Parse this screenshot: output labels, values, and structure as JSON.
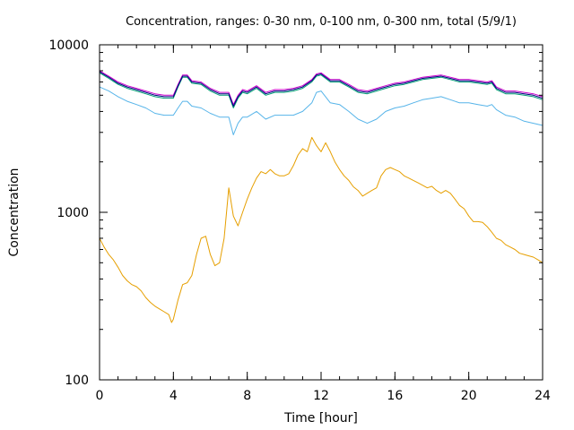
{
  "chart_data": {
    "type": "line",
    "title": "Concentration, ranges: 0-30 nm, 0-100 nm, 0-300 nm, total (5/9/1)",
    "xlabel": "Time [hour]",
    "ylabel": "Concentration",
    "xlim": [
      0,
      24
    ],
    "ylim": [
      100,
      10000
    ],
    "y_scale": "log",
    "grid": false,
    "x_ticks": [
      0,
      4,
      8,
      12,
      16,
      20,
      24
    ],
    "x_tick_labels": [
      "0",
      "4",
      "8",
      "12",
      "16",
      "20",
      "24"
    ],
    "x_minor_step": 1,
    "y_ticks": [
      100,
      1000,
      10000
    ],
    "y_tick_labels": [
      "100",
      "1000",
      "10000"
    ],
    "series": [
      {
        "color": "#e69f00",
        "x": [
          0,
          0.25,
          0.5,
          0.75,
          1,
          1.25,
          1.5,
          1.75,
          2,
          2.25,
          2.5,
          2.75,
          3,
          3.25,
          3.5,
          3.75,
          3.9,
          4,
          4.25,
          4.5,
          4.75,
          5,
          5.25,
          5.5,
          5.75,
          6,
          6.25,
          6.5,
          6.75,
          7,
          7.25,
          7.5,
          7.75,
          8,
          8.25,
          8.5,
          8.75,
          9,
          9.25,
          9.5,
          9.75,
          10,
          10.25,
          10.5,
          10.75,
          11,
          11.25,
          11.5,
          11.75,
          12,
          12.25,
          12.5,
          12.75,
          13,
          13.25,
          13.5,
          13.75,
          14,
          14.25,
          14.5,
          14.75,
          15,
          15.25,
          15.5,
          15.75,
          16,
          16.25,
          16.5,
          16.75,
          17,
          17.25,
          17.5,
          17.75,
          18,
          18.25,
          18.5,
          18.75,
          19,
          19.25,
          19.5,
          19.75,
          20,
          20.25,
          20.5,
          20.75,
          21,
          21.25,
          21.5,
          21.75,
          22,
          22.25,
          22.5,
          22.75,
          23,
          23.25,
          23.5,
          23.75,
          24
        ],
        "y": [
          700,
          620,
          560,
          520,
          470,
          420,
          390,
          370,
          360,
          340,
          310,
          290,
          275,
          265,
          255,
          245,
          220,
          230,
          300,
          370,
          380,
          420,
          560,
          700,
          720,
          560,
          480,
          500,
          700,
          1400,
          950,
          830,
          1000,
          1200,
          1400,
          1600,
          1750,
          1700,
          1800,
          1700,
          1650,
          1650,
          1700,
          1900,
          2200,
          2400,
          2300,
          2800,
          2500,
          2300,
          2600,
          2300,
          2000,
          1800,
          1650,
          1550,
          1420,
          1350,
          1250,
          1300,
          1350,
          1400,
          1650,
          1800,
          1850,
          1800,
          1750,
          1650,
          1600,
          1550,
          1500,
          1450,
          1400,
          1430,
          1350,
          1300,
          1350,
          1300,
          1200,
          1100,
          1050,
          950,
          880,
          880,
          870,
          820,
          760,
          700,
          680,
          640,
          620,
          600,
          570,
          560,
          550,
          540,
          520,
          500
        ]
      },
      {
        "color": "#56b4e9",
        "x": [
          0,
          0.5,
          1,
          1.5,
          2,
          2.5,
          3,
          3.5,
          4,
          4.25,
          4.5,
          4.75,
          5,
          5.5,
          6,
          6.5,
          7,
          7.25,
          7.5,
          7.75,
          8,
          8.5,
          9,
          9.5,
          10,
          10.5,
          11,
          11.5,
          11.75,
          12,
          12.5,
          13,
          13.5,
          14,
          14.5,
          15,
          15.5,
          16,
          16.5,
          17,
          17.5,
          18,
          18.5,
          19,
          19.5,
          20,
          20.5,
          21,
          21.25,
          21.5,
          22,
          22.5,
          23,
          23.5,
          24
        ],
        "y": [
          5600,
          5300,
          4900,
          4600,
          4400,
          4200,
          3900,
          3800,
          3800,
          4200,
          4600,
          4600,
          4300,
          4200,
          3900,
          3700,
          3700,
          2900,
          3400,
          3700,
          3700,
          4000,
          3600,
          3800,
          3800,
          3800,
          4000,
          4500,
          5200,
          5300,
          4500,
          4400,
          4000,
          3600,
          3400,
          3600,
          4000,
          4200,
          4300,
          4500,
          4700,
          4800,
          4900,
          4700,
          4500,
          4500,
          4400,
          4300,
          4400,
          4100,
          3800,
          3700,
          3500,
          3400,
          3300
        ]
      },
      {
        "color": "#009e73",
        "x": [
          0,
          0.5,
          1,
          1.5,
          2,
          2.5,
          3,
          3.5,
          4,
          4.25,
          4.5,
          4.75,
          5,
          5.5,
          6,
          6.5,
          7,
          7.25,
          7.5,
          7.75,
          8,
          8.5,
          9,
          9.5,
          10,
          10.5,
          11,
          11.5,
          11.75,
          12,
          12.5,
          13,
          13.5,
          14,
          14.5,
          15,
          15.5,
          16,
          16.5,
          17,
          17.5,
          18,
          18.5,
          19,
          19.5,
          20,
          20.5,
          21,
          21.25,
          21.5,
          22,
          22.5,
          23,
          23.5,
          24
        ],
        "y": [
          6800,
          6300,
          5800,
          5500,
          5300,
          5100,
          4900,
          4800,
          4800,
          5600,
          6400,
          6400,
          5900,
          5800,
          5300,
          5000,
          5000,
          4200,
          4800,
          5200,
          5100,
          5500,
          5000,
          5200,
          5200,
          5300,
          5500,
          6000,
          6500,
          6600,
          6000,
          6000,
          5600,
          5200,
          5100,
          5300,
          5500,
          5700,
          5800,
          6000,
          6200,
          6300,
          6400,
          6200,
          6000,
          6000,
          5900,
          5800,
          5900,
          5400,
          5100,
          5100,
          5000,
          4900,
          4700
        ]
      },
      {
        "color": "#cc00cc",
        "x": [
          0,
          0.5,
          1,
          1.5,
          2,
          2.5,
          3,
          3.5,
          4,
          4.25,
          4.5,
          4.75,
          5,
          5.5,
          6,
          6.5,
          7,
          7.25,
          7.5,
          7.75,
          8,
          8.5,
          9,
          9.5,
          10,
          10.5,
          11,
          11.5,
          11.75,
          12,
          12.5,
          13,
          13.5,
          14,
          14.5,
          15,
          15.5,
          16,
          16.5,
          17,
          17.5,
          18,
          18.5,
          19,
          19.5,
          20,
          20.5,
          21,
          21.25,
          21.5,
          22,
          22.5,
          23,
          23.5,
          24
        ],
        "y": [
          7000,
          6500,
          6000,
          5700,
          5500,
          5300,
          5100,
          5000,
          5000,
          5800,
          6600,
          6600,
          6100,
          6000,
          5500,
          5200,
          5200,
          4400,
          5000,
          5400,
          5300,
          5700,
          5200,
          5400,
          5400,
          5500,
          5700,
          6200,
          6700,
          6800,
          6200,
          6200,
          5800,
          5400,
          5300,
          5500,
          5700,
          5900,
          6000,
          6200,
          6400,
          6500,
          6600,
          6400,
          6200,
          6200,
          6100,
          6000,
          6100,
          5600,
          5300,
          5300,
          5200,
          5100,
          4900
        ]
      },
      {
        "color": "#000080",
        "x": [
          0,
          0.5,
          1,
          1.5,
          2,
          2.5,
          3,
          3.5,
          4,
          4.25,
          4.5,
          4.75,
          5,
          5.5,
          6,
          6.5,
          7,
          7.25,
          7.5,
          7.75,
          8,
          8.5,
          9,
          9.5,
          10,
          10.5,
          11,
          11.5,
          11.75,
          12,
          12.5,
          13,
          13.5,
          14,
          14.5,
          15,
          15.5,
          16,
          16.5,
          17,
          17.5,
          18,
          18.5,
          19,
          19.5,
          20,
          20.5,
          21,
          21.25,
          21.5,
          22,
          22.5,
          23,
          23.5,
          24
        ],
        "y": [
          6900,
          6400,
          5900,
          5600,
          5400,
          5200,
          5000,
          4900,
          4900,
          5700,
          6500,
          6500,
          6000,
          5900,
          5400,
          5100,
          5100,
          4300,
          4900,
          5300,
          5200,
          5600,
          5100,
          5300,
          5300,
          5400,
          5600,
          6100,
          6600,
          6700,
          6100,
          6100,
          5700,
          5300,
          5200,
          5400,
          5600,
          5800,
          5900,
          6100,
          6300,
          6400,
          6500,
          6300,
          6100,
          6100,
          6000,
          5900,
          6000,
          5500,
          5200,
          5200,
          5100,
          5000,
          4800
        ]
      }
    ]
  }
}
